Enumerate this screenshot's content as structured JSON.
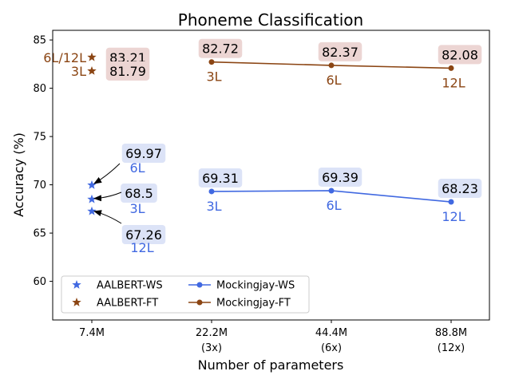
{
  "chart_data": {
    "type": "line",
    "title": "Phoneme Classification",
    "xlabel": "Number of parameters",
    "ylabel": "Accuracy (%)",
    "ylim": [
      56,
      86
    ],
    "yticks": [
      60,
      65,
      70,
      75,
      80,
      85
    ],
    "grid": false,
    "legend_position": "lower-left",
    "categories": [
      {
        "line1": "7.4M",
        "line2": ""
      },
      {
        "line1": "22.2M",
        "line2": "(3x)"
      },
      {
        "line1": "44.4M",
        "line2": "(6x)"
      },
      {
        "line1": "88.8M",
        "line2": "(12x)"
      }
    ],
    "series": [
      {
        "name": "AALBERT-WS",
        "marker": "star",
        "line": false,
        "color": "#4169e1",
        "label_bg": "#dce3f7",
        "points": [
          {
            "x": 0,
            "y": 69.97,
            "value_label": "69.97",
            "layer_label": "6L"
          },
          {
            "x": 0,
            "y": 68.5,
            "value_label": "68.5",
            "layer_label": "3L"
          },
          {
            "x": 0,
            "y": 67.26,
            "value_label": "67.26",
            "layer_label": "12L"
          }
        ]
      },
      {
        "name": "AALBERT-FT",
        "marker": "star",
        "line": false,
        "color": "#8b4513",
        "label_bg": "#ecd5d3",
        "points": [
          {
            "x": 0,
            "y": 83.21,
            "value_label": "83.21",
            "layer_label": "6L/12L"
          },
          {
            "x": 0,
            "y": 81.79,
            "value_label": "81.79",
            "layer_label": "3L"
          }
        ]
      },
      {
        "name": "Mockingjay-WS",
        "marker": "circle",
        "line": true,
        "color": "#4169e1",
        "label_bg": "#dce3f7",
        "points": [
          {
            "x": 1,
            "y": 69.31,
            "value_label": "69.31",
            "layer_label": "3L"
          },
          {
            "x": 2,
            "y": 69.39,
            "value_label": "69.39",
            "layer_label": "6L"
          },
          {
            "x": 3,
            "y": 68.23,
            "value_label": "68.23",
            "layer_label": "12L"
          }
        ]
      },
      {
        "name": "Mockingjay-FT",
        "marker": "circle",
        "line": true,
        "color": "#8b4513",
        "label_bg": "#ecd5d3",
        "points": [
          {
            "x": 1,
            "y": 82.72,
            "value_label": "82.72",
            "layer_label": "3L"
          },
          {
            "x": 2,
            "y": 82.37,
            "value_label": "82.37",
            "layer_label": "6L"
          },
          {
            "x": 3,
            "y": 82.08,
            "value_label": "82.08",
            "layer_label": "12L"
          }
        ]
      }
    ]
  }
}
